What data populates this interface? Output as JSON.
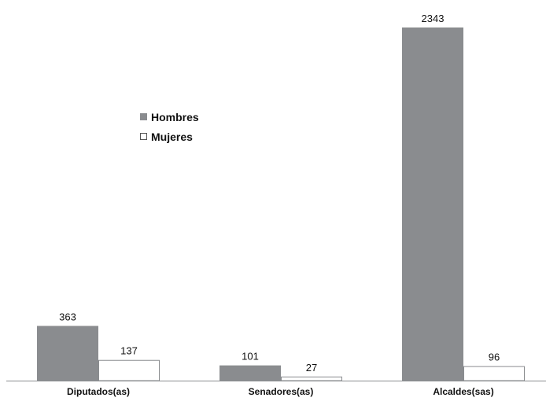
{
  "chart_data": {
    "type": "bar",
    "title": "",
    "xlabel": "",
    "ylabel": "",
    "categories": [
      "Diputados(as)",
      "Senadores(as)",
      "Alcaldes(sas)"
    ],
    "series": [
      {
        "name": "Hombres",
        "values": [
          363,
          101,
          2343
        ],
        "color": "#8a8c8f"
      },
      {
        "name": "Mujeres",
        "values": [
          137,
          27,
          96
        ],
        "color": "#ffffff",
        "stroke": "#8a8c8f"
      }
    ],
    "ylim": [
      0,
      2400
    ],
    "grid": false,
    "legend_position": "upper-left"
  }
}
